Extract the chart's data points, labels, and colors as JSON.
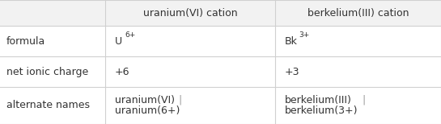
{
  "bg_color": "#ffffff",
  "header_bg": "#f2f2f2",
  "cell_bg": "#ffffff",
  "line_color": "#d0d0d0",
  "text_color": "#333333",
  "sep_color": "#999999",
  "headers": [
    "",
    "uranium(VI) cation",
    "berkelium(III) cation"
  ],
  "row_labels": [
    "formula",
    "net ionic charge",
    "alternate names"
  ],
  "formula_col1_main": "U",
  "formula_col1_sup": "6+",
  "formula_col2_main": "Bk",
  "formula_col2_sup": "3+",
  "charge_col1": "+6",
  "charge_col2": "+3",
  "alt_col1_line1": "uranium(VI)",
  "alt_col1_line2": "uranium(6+)",
  "alt_col2_line1": "berkelium(III)",
  "alt_col2_line2": "berkelium(3+)",
  "font_size": 9.0,
  "sup_font_size": 6.5
}
